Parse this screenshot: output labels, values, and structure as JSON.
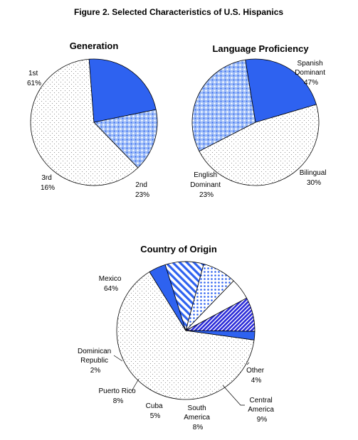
{
  "figure_title": "Figure 2. Selected Characteristics of U.S. Hispanics",
  "colors": {
    "border": "#000000",
    "dots": "#7a7a7a",
    "solid_blue": "#2e62f0",
    "blue_dark": "#2a2ad8",
    "blue_light": "#8fb0f5",
    "white": "#ffffff"
  },
  "chart_data": [
    {
      "type": "pie",
      "title": "Generation",
      "slices": [
        {
          "label": "1st",
          "value": 61,
          "value_label": "61%",
          "fill": "dots-fine"
        },
        {
          "label": "2nd",
          "value": 23,
          "value_label": "23%",
          "fill": "solid-blue"
        },
        {
          "label": "3rd",
          "value": 16,
          "value_label": "16%",
          "fill": "blue-dot-grid"
        }
      ]
    },
    {
      "type": "pie",
      "title": "Language Proficiency",
      "slices": [
        {
          "label": "Spanish Dominant",
          "label_lines": [
            "Spanish",
            "Dominant"
          ],
          "value": 47,
          "value_label": "47%",
          "fill": "dots-fine"
        },
        {
          "label": "Bilingual",
          "label_lines": [
            "Bilingual"
          ],
          "value": 30,
          "value_label": "30%",
          "fill": "blue-dot-grid"
        },
        {
          "label": "English Dominant",
          "label_lines": [
            "English",
            "Dominant"
          ],
          "value": 23,
          "value_label": "23%",
          "fill": "solid-blue"
        }
      ]
    },
    {
      "type": "pie",
      "title": "Country of Origin",
      "slices": [
        {
          "label": "Mexico",
          "label_lines": [
            "Mexico"
          ],
          "value": 64,
          "value_label": "64%",
          "fill": "dots-fine"
        },
        {
          "label": "Other",
          "label_lines": [
            "Other"
          ],
          "value": 4,
          "value_label": "4%",
          "fill": "solid-blue"
        },
        {
          "label": "Central America",
          "label_lines": [
            "Central",
            "America"
          ],
          "value": 9,
          "value_label": "9%",
          "fill": "diagonal-blue"
        },
        {
          "label": "South America",
          "label_lines": [
            "South",
            "America"
          ],
          "value": 8,
          "value_label": "8%",
          "fill": "blue-dots"
        },
        {
          "label": "Cuba",
          "label_lines": [
            "Cuba"
          ],
          "value": 5,
          "value_label": "5%",
          "fill": "white"
        },
        {
          "label": "Puerto Rico",
          "label_lines": [
            "Puerto Rico"
          ],
          "value": 8,
          "value_label": "8%",
          "fill": "dark-hatch"
        },
        {
          "label": "Dominican Republic",
          "label_lines": [
            "Dominican",
            "Republic"
          ],
          "value": 2,
          "value_label": "2%",
          "fill": "solid-blue"
        }
      ]
    }
  ]
}
